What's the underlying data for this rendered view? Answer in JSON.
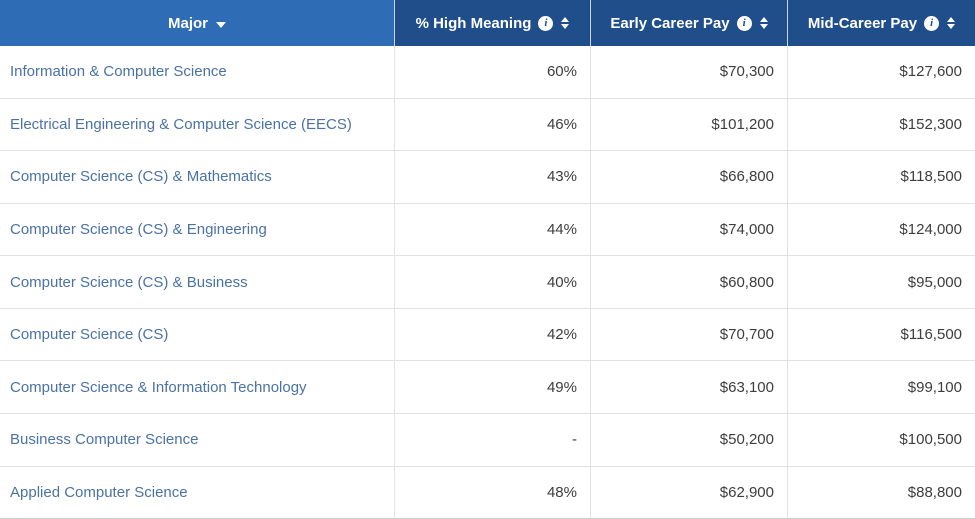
{
  "table": {
    "columns": [
      {
        "label": "Major",
        "sort_state": "descending",
        "has_info": false
      },
      {
        "label": "% High Meaning",
        "sort_state": "none",
        "has_info": true
      },
      {
        "label": "Early Career Pay",
        "sort_state": "none",
        "has_info": true
      },
      {
        "label": "Mid-Career Pay",
        "sort_state": "none",
        "has_info": true
      }
    ],
    "rows": [
      {
        "major": "Information & Computer Science",
        "high_meaning": "60%",
        "early_pay": "$70,300",
        "mid_pay": "$127,600"
      },
      {
        "major": "Electrical Engineering & Computer Science (EECS)",
        "high_meaning": "46%",
        "early_pay": "$101,200",
        "mid_pay": "$152,300"
      },
      {
        "major": "Computer Science (CS) & Mathematics",
        "high_meaning": "43%",
        "early_pay": "$66,800",
        "mid_pay": "$118,500"
      },
      {
        "major": "Computer Science (CS) & Engineering",
        "high_meaning": "44%",
        "early_pay": "$74,000",
        "mid_pay": "$124,000"
      },
      {
        "major": "Computer Science (CS) & Business",
        "high_meaning": "40%",
        "early_pay": "$60,800",
        "mid_pay": "$95,000"
      },
      {
        "major": "Computer Science (CS)",
        "high_meaning": "42%",
        "early_pay": "$70,700",
        "mid_pay": "$116,500"
      },
      {
        "major": "Computer Science & Information Technology",
        "high_meaning": "49%",
        "early_pay": "$63,100",
        "mid_pay": "$99,100"
      },
      {
        "major": "Business Computer Science",
        "high_meaning": "-",
        "early_pay": "$50,200",
        "mid_pay": "$100,500"
      },
      {
        "major": "Applied Computer Science",
        "high_meaning": "48%",
        "early_pay": "$62,900",
        "mid_pay": "$88,800"
      }
    ],
    "icons": {
      "info_glyph": "i",
      "info": "info-icon",
      "sort": "sort-updown-icon",
      "sort_desc": "caret-down-icon"
    },
    "colors": {
      "header_active_bg": "#2e6cb5",
      "header_bg": "#1f4e8a",
      "header_text": "#ffffff",
      "link_text": "#4a72a5",
      "value_text": "#3d3d3d",
      "row_border": "#e2e2e2"
    }
  }
}
